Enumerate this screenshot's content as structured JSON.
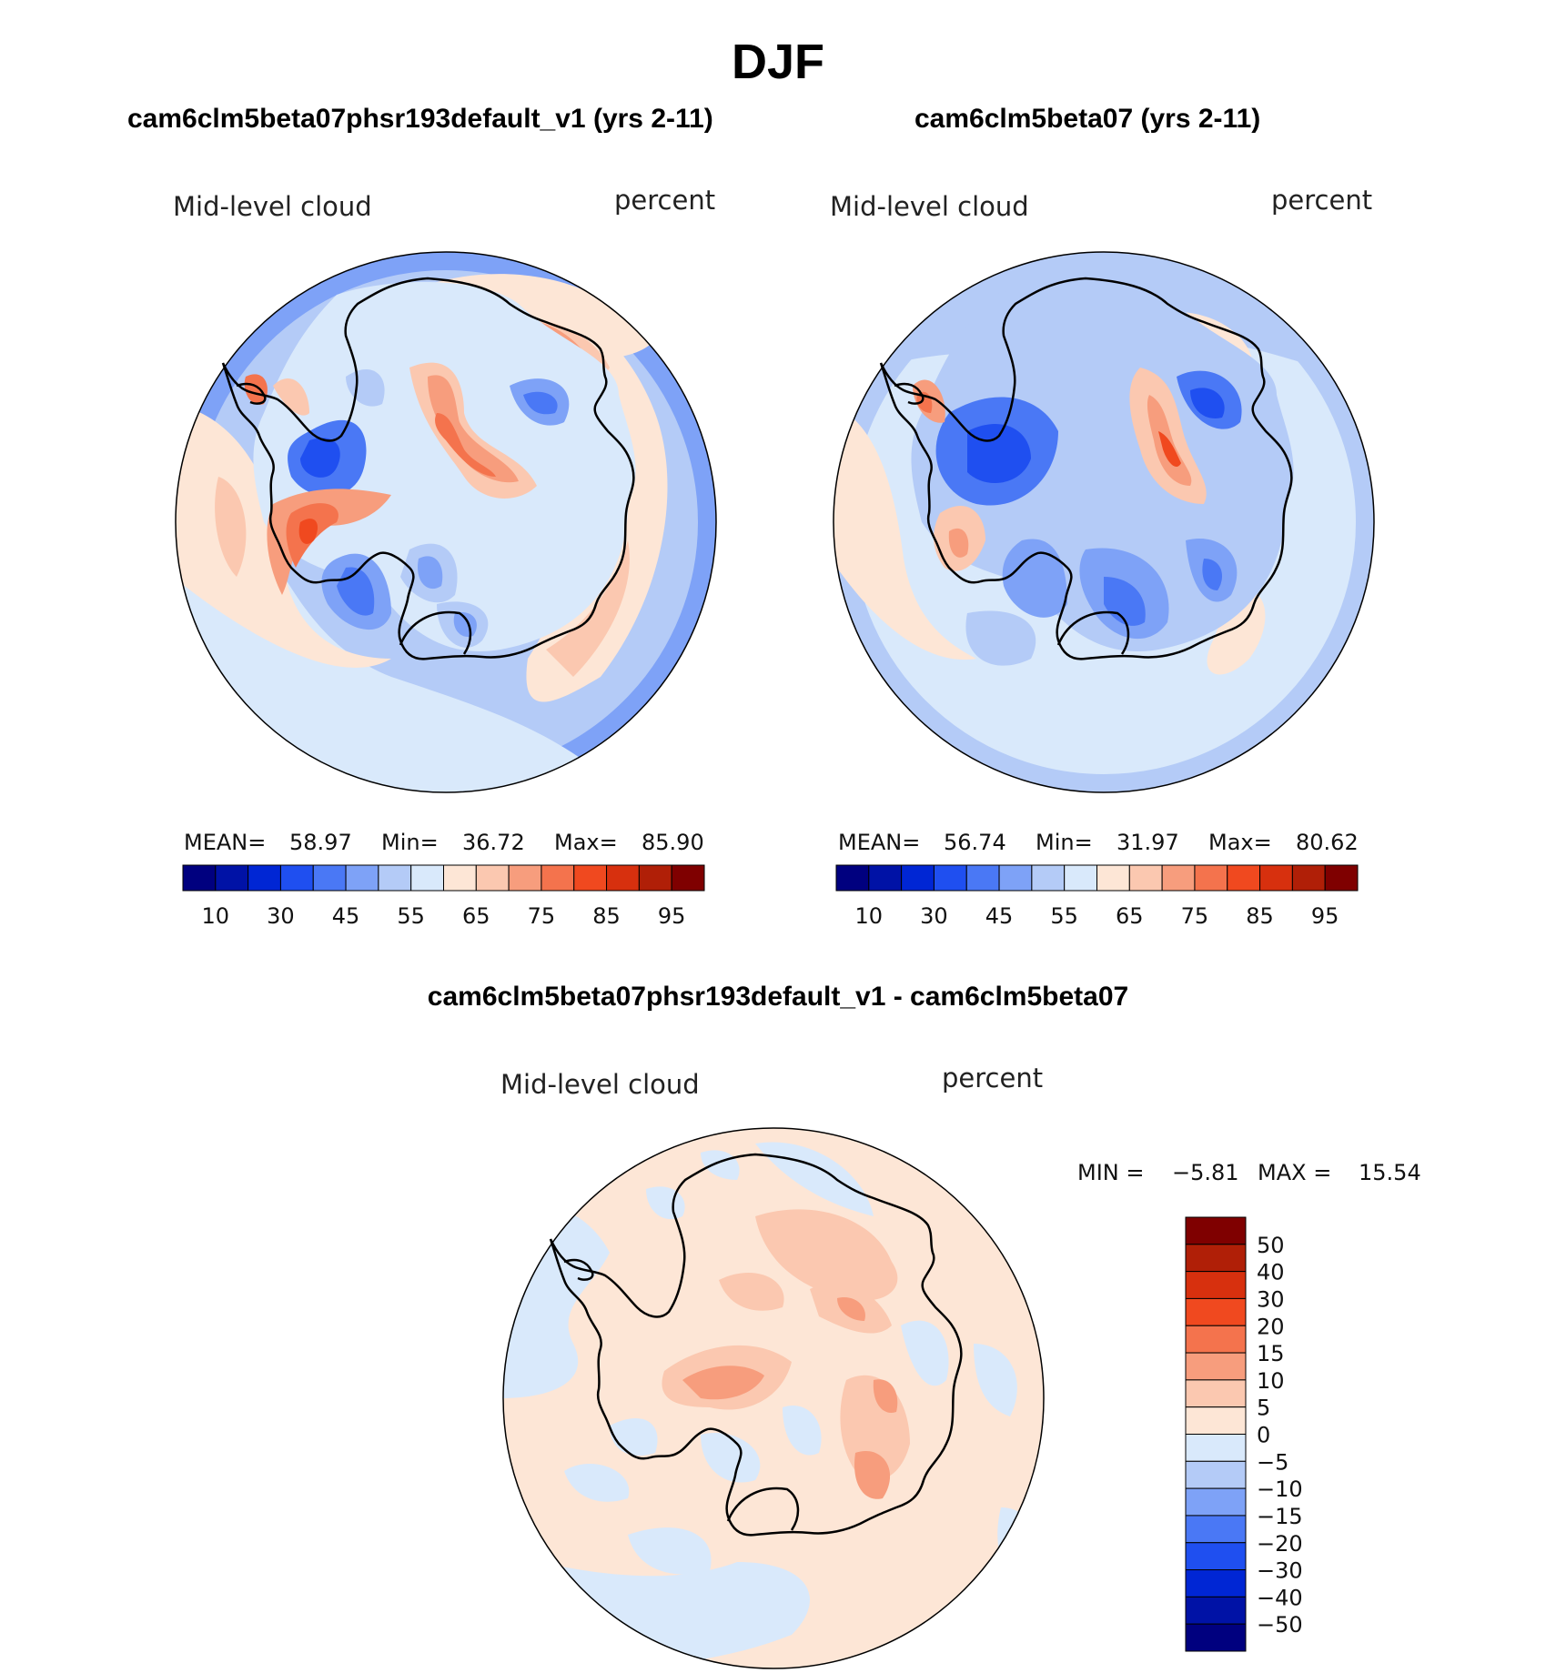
{
  "title": "DJF",
  "panels": [
    {
      "case_title": "cam6clm5beta07phsr193default_v1 (yrs 2-11)",
      "field_label": "Mid-level cloud",
      "units": "percent",
      "mean_label": "MEAN=",
      "mean": "58.97",
      "min_label": "Min=",
      "min": "36.72",
      "max_label": "Max=",
      "max": "85.90"
    },
    {
      "case_title": "cam6clm5beta07 (yrs 2-11)",
      "field_label": "Mid-level cloud",
      "units": "percent",
      "mean_label": "MEAN=",
      "mean": "56.74",
      "min_label": "Min=",
      "min": "31.97",
      "max_label": "Max=",
      "max": "80.62"
    }
  ],
  "diff_panel": {
    "title": "cam6clm5beta07phsr193default_v1 - cam6clm5beta07",
    "field_label": "Mid-level cloud",
    "units": "percent",
    "min_label": "MIN =",
    "min": "−5.81",
    "max_label": "MAX =",
    "max": "15.54"
  },
  "colorbar_abs": {
    "colors": [
      "#00007f",
      "#0012a6",
      "#0026d4",
      "#1f4ff0",
      "#4a78f5",
      "#7ea2f7",
      "#b4cbf7",
      "#d9e9fb",
      "#fde6d6",
      "#fbc8b0",
      "#f79d7d",
      "#f4734d",
      "#f0491f",
      "#d7300e",
      "#b01f07",
      "#7f0000"
    ],
    "tick_labels": [
      "10",
      "30",
      "45",
      "55",
      "65",
      "75",
      "85",
      "95"
    ]
  },
  "colorbar_diff": {
    "colors": [
      "#7f0000",
      "#b01f07",
      "#d7300e",
      "#f0491f",
      "#f4734d",
      "#f79d7d",
      "#fbc8b0",
      "#fde6d6",
      "#d9e9fb",
      "#b4cbf7",
      "#7ea2f7",
      "#4a78f5",
      "#1f4ff0",
      "#0026d4",
      "#0012a6",
      "#00007f"
    ],
    "tick_labels": [
      "50",
      "40",
      "30",
      "20",
      "15",
      "10",
      "5",
      "0",
      "−5",
      "−10",
      "−15",
      "−20",
      "−30",
      "−40",
      "−50"
    ]
  }
}
